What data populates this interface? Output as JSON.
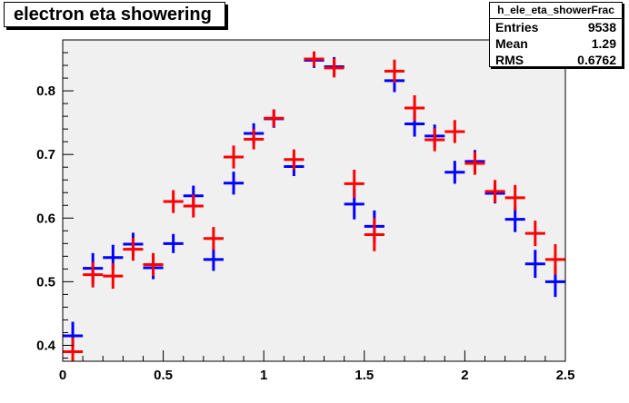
{
  "chart_data": {
    "type": "scatter",
    "title": "electron eta showering",
    "xlim": [
      0,
      2.5
    ],
    "ylim": [
      0.375,
      0.88
    ],
    "x_ticks": [
      "0",
      "0.5",
      "1",
      "1.5",
      "2",
      "2.5"
    ],
    "y_ticks": [
      "0.4",
      "0.5",
      "0.6",
      "0.7",
      "0.8"
    ],
    "x_tick_values": [
      0,
      0.5,
      1,
      1.5,
      2,
      2.5
    ],
    "y_tick_values": [
      0.4,
      0.5,
      0.6,
      0.7,
      0.8
    ],
    "x": [
      0.05,
      0.15,
      0.25,
      0.35,
      0.45,
      0.55,
      0.65,
      0.75,
      0.85,
      0.95,
      1.05,
      1.15,
      1.25,
      1.35,
      1.45,
      1.55,
      1.65,
      1.75,
      1.85,
      1.95,
      2.05,
      2.15,
      2.25,
      2.35,
      2.45
    ],
    "series": [
      {
        "color": "#0000ff",
        "values": [
          0.415,
          0.521,
          0.538,
          0.559,
          0.522,
          0.56,
          0.635,
          0.535,
          0.655,
          0.733,
          0.756,
          0.681,
          0.848,
          0.838,
          0.622,
          0.587,
          0.816,
          0.748,
          0.729,
          0.672,
          0.689,
          0.639,
          0.598,
          0.528,
          0.5
        ],
        "errors": [
          0.022,
          0.024,
          0.02,
          0.018,
          0.018,
          0.015,
          0.016,
          0.018,
          0.018,
          0.016,
          0.014,
          0.015,
          0.012,
          0.015,
          0.024,
          0.025,
          0.018,
          0.02,
          0.018,
          0.018,
          0.018,
          0.016,
          0.02,
          0.022,
          0.024
        ]
      },
      {
        "color": "#ff0000",
        "values": [
          0.39,
          0.511,
          0.509,
          0.551,
          0.527,
          0.626,
          0.619,
          0.568,
          0.696,
          0.724,
          0.757,
          0.692,
          0.85,
          0.836,
          0.654,
          0.574,
          0.831,
          0.773,
          0.723,
          0.736,
          0.686,
          0.642,
          0.632,
          0.576,
          0.535
        ],
        "errors": [
          0.022,
          0.02,
          0.02,
          0.018,
          0.018,
          0.018,
          0.018,
          0.018,
          0.018,
          0.016,
          0.014,
          0.016,
          0.012,
          0.015,
          0.022,
          0.026,
          0.018,
          0.02,
          0.018,
          0.018,
          0.018,
          0.018,
          0.02,
          0.02,
          0.024
        ]
      }
    ],
    "grid": false,
    "legend": "none"
  },
  "stats": {
    "name": "h_ele_eta_showerFrac",
    "rows": [
      {
        "label": "Entries",
        "value": "9538"
      },
      {
        "label": "Mean",
        "value": "1.29"
      },
      {
        "label": "RMS",
        "value": "0.6762"
      }
    ]
  },
  "colors": {
    "frame_background": "#f0f0f0",
    "page_background": "#ffffff"
  }
}
